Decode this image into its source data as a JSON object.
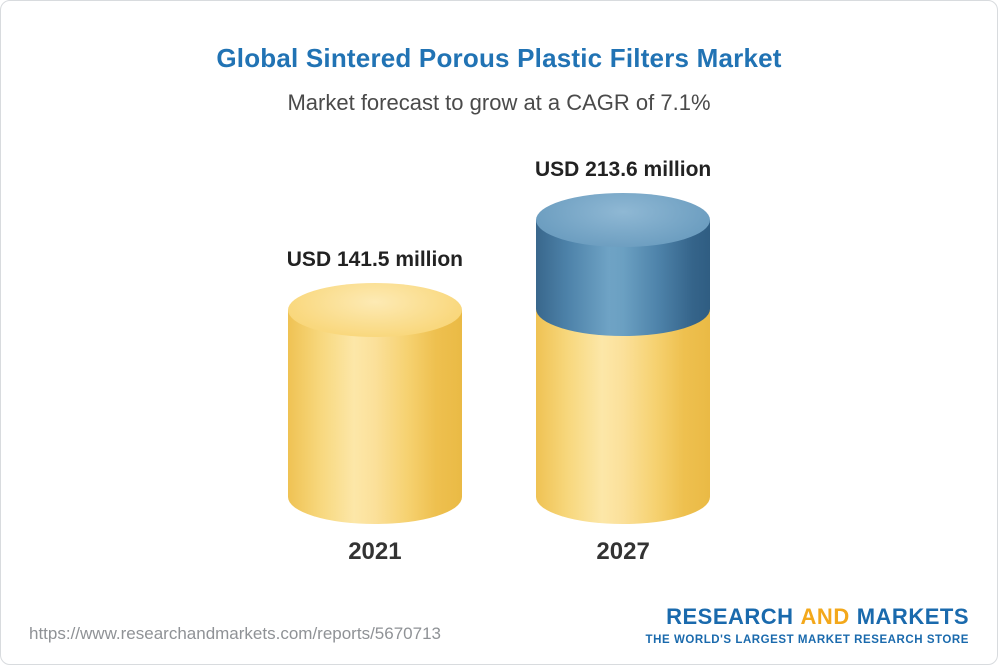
{
  "header": {
    "title": "Global Sintered Porous Plastic Filters Market",
    "subtitle": "Market forecast to grow at a CAGR of 7.1%"
  },
  "chart_data": {
    "type": "bar",
    "bar_style": "3d-cylinder",
    "categories": [
      "2021",
      "2027"
    ],
    "values": [
      141.5,
      213.6
    ],
    "unit": "USD million",
    "title": "Global Sintered Porous Plastic Filters Market",
    "subtitle": "Market forecast to grow at a CAGR of 7.1%",
    "cagr": "7.1%",
    "data_labels": [
      "USD 141.5 million",
      "USD 213.6 million"
    ],
    "grid": false,
    "legend": false,
    "axes": false,
    "colors": {
      "base_segment": "#f6d374",
      "growth_segment": "#4d82a9",
      "title": "#2173b4"
    }
  },
  "bars": [
    {
      "year": "2021",
      "label": "USD 141.5 million"
    },
    {
      "year": "2027",
      "label": "USD 213.6 million"
    }
  ],
  "footer": {
    "url": "https://www.researchandmarkets.com/reports/5670713",
    "logo": {
      "research": "RESEARCH",
      "and": "AND",
      "markets": "MARKETS",
      "tagline": "THE WORLD'S LARGEST MARKET RESEARCH STORE"
    }
  }
}
